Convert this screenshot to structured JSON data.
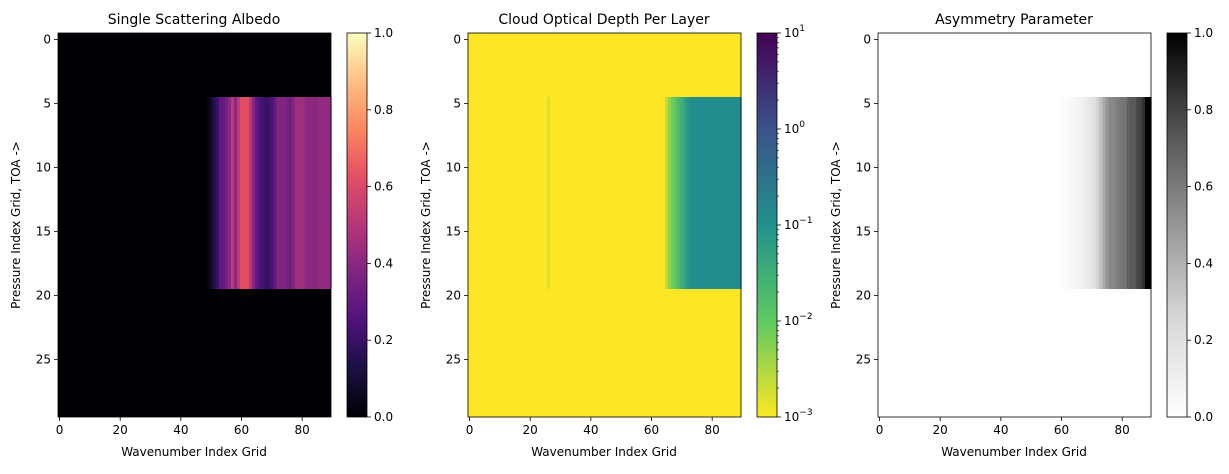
{
  "chart_data": [
    {
      "type": "heatmap",
      "title": "Single Scattering Albedo",
      "xlabel": "Wavenumber Index Grid",
      "ylabel": "Pressure Index Grid, TOA ->",
      "xlim": [
        -0.5,
        89.5
      ],
      "ylim": [
        29.5,
        -0.5
      ],
      "xticks": [
        0,
        20,
        40,
        60,
        80
      ],
      "yticks": [
        0,
        5,
        10,
        15,
        20,
        25
      ],
      "grid": false,
      "colormap": "magma",
      "colorbar": {
        "scale": "linear",
        "range": [
          0,
          1
        ],
        "ticks": [
          "0.0",
          "0.2",
          "0.4",
          "0.6",
          "0.8",
          "1.0"
        ]
      },
      "background_value": 0,
      "band": {
        "rows": [
          5,
          19
        ],
        "cols": [
          49,
          89
        ]
      },
      "band_profile": [
        0.03,
        0.08,
        0.15,
        0.2,
        0.3,
        0.3,
        0.35,
        0.4,
        0.52,
        0.4,
        0.52,
        0.62,
        0.62,
        0.62,
        0.5,
        0.38,
        0.3,
        0.25,
        0.22,
        0.2,
        0.2,
        0.25,
        0.3,
        0.38,
        0.38,
        0.38,
        0.36,
        0.33,
        0.38,
        0.45,
        0.45,
        0.45,
        0.42,
        0.4,
        0.4,
        0.4,
        0.4,
        0.42,
        0.42,
        0.42,
        0.42
      ]
    },
    {
      "type": "heatmap",
      "title": "Cloud Optical Depth Per Layer",
      "xlabel": "Wavenumber Index Grid",
      "ylabel": "Pressure Index Grid, TOA ->",
      "xlim": [
        -0.5,
        89.5
      ],
      "ylim": [
        29.5,
        -0.5
      ],
      "xticks": [
        0,
        20,
        40,
        60,
        80
      ],
      "yticks": [
        0,
        5,
        10,
        15,
        20,
        25
      ],
      "grid": false,
      "colormap": "viridis_r",
      "colorbar": {
        "scale": "log",
        "range": [
          0.001,
          10
        ],
        "ticks": [
          "10",
          "10",
          "10",
          "10",
          "10"
        ],
        "tick_exponents": [
          "−3",
          "−2",
          "−1",
          "0",
          "1"
        ]
      },
      "background_value": 0.001,
      "band": {
        "rows": [
          5,
          19
        ],
        "cols": [
          26,
          89
        ]
      },
      "band_profile": [
        0.0017,
        0.001,
        0.001,
        0.001,
        0.001,
        0.001,
        0.001,
        0.001,
        0.001,
        0.001,
        0.001,
        0.001,
        0.001,
        0.001,
        0.001,
        0.001,
        0.001,
        0.001,
        0.001,
        0.001,
        0.001,
        0.001,
        0.001,
        0.001,
        0.001,
        0.001,
        0.001,
        0.001,
        0.001,
        0.001,
        0.001,
        0.001,
        0.001,
        0.001,
        0.001,
        0.001,
        0.001,
        0.001,
        0.001,
        0.0025,
        0.005,
        0.008,
        0.012,
        0.02,
        0.03,
        0.05,
        0.08,
        0.1,
        0.12,
        0.12,
        0.12,
        0.12,
        0.12,
        0.12,
        0.12,
        0.12,
        0.12,
        0.12,
        0.12,
        0.12,
        0.12,
        0.12,
        0.12,
        0.12
      ]
    },
    {
      "type": "heatmap",
      "title": "Asymmetry Parameter",
      "xlabel": "Wavenumber Index Grid",
      "ylabel": "Pressure Index Grid, TOA ->",
      "xlim": [
        -0.5,
        89.5
      ],
      "ylim": [
        29.5,
        -0.5
      ],
      "xticks": [
        0,
        20,
        40,
        60,
        80
      ],
      "yticks": [
        0,
        5,
        10,
        15,
        20,
        25
      ],
      "grid": false,
      "colormap": "Greys",
      "colorbar": {
        "scale": "linear",
        "range": [
          0,
          1
        ],
        "ticks": [
          "0.0",
          "0.2",
          "0.4",
          "0.6",
          "0.8",
          "1.0"
        ]
      },
      "background_value": 0,
      "band": {
        "rows": [
          5,
          19
        ],
        "cols": [
          60,
          89
        ]
      },
      "band_profile": [
        0.01,
        0.02,
        0.03,
        0.04,
        0.05,
        0.07,
        0.08,
        0.1,
        0.12,
        0.15,
        0.18,
        0.22,
        0.28,
        0.35,
        0.42,
        0.5,
        0.55,
        0.55,
        0.58,
        0.6,
        0.62,
        0.62,
        0.7,
        0.72,
        0.72,
        0.78,
        0.8,
        0.85,
        1.0,
        1.0
      ]
    }
  ]
}
